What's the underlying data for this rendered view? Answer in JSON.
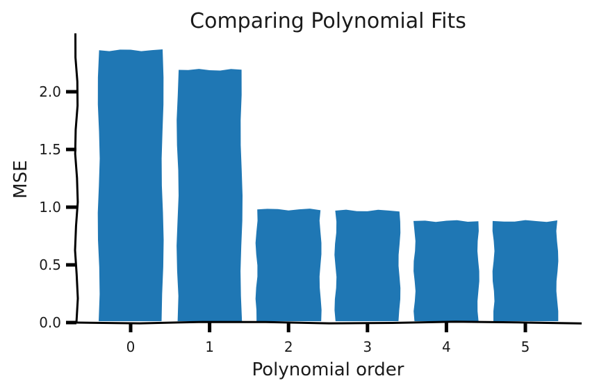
{
  "chart_data": {
    "type": "bar",
    "title": "Comparing Polynomial Fits",
    "xlabel": "Polynomial order",
    "ylabel": "MSE",
    "categories": [
      "0",
      "1",
      "2",
      "3",
      "4",
      "5"
    ],
    "values": [
      2.36,
      2.19,
      0.98,
      0.97,
      0.88,
      0.88
    ],
    "ylim": [
      0,
      2.5
    ],
    "yticks": [
      "0.0",
      "0.5",
      "1.0",
      "1.5",
      "2.0"
    ],
    "grid": false,
    "style": "xkcd",
    "colors": {
      "bar": "#1f77b4",
      "axis": "#000000"
    }
  }
}
